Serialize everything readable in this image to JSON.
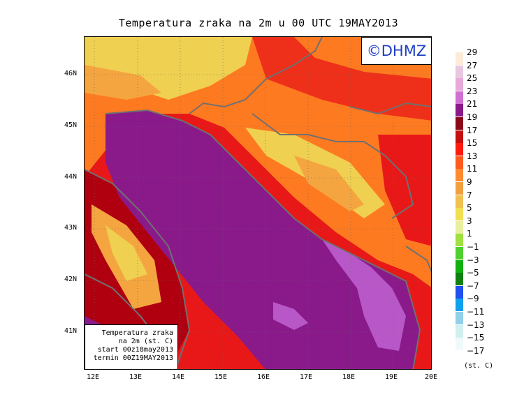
{
  "title": "Temperatura zraka na 2m u 00 UTC 19MAY2013",
  "logo": "©DHMZ",
  "infobox": {
    "line1": "Temperatura zraka",
    "line2": "na 2m (st. C)",
    "line3": "start 00z18may2013",
    "line4": "termin 00Z19MAY2013"
  },
  "y_ticks": [
    "46N",
    "45N",
    "44N",
    "43N",
    "42N",
    "41N"
  ],
  "x_ticks": [
    "12E",
    "13E",
    "14E",
    "15E",
    "16E",
    "17E",
    "18E",
    "19E",
    "20E"
  ],
  "legend": {
    "labels": [
      "29",
      "27",
      "25",
      "23",
      "21",
      "19",
      "17",
      "15",
      "13",
      "11",
      "9",
      "7",
      "5",
      "3",
      "1",
      "−1",
      "−3",
      "−5",
      "−7",
      "−9",
      "−11",
      "−13",
      "−15",
      "−17"
    ],
    "colors": [
      "#fdebd8",
      "#e8c8e0",
      "#e8a8d8",
      "#d070d0",
      "#8a1a8a",
      "#8a0a1a",
      "#c41010",
      "#ff1a10",
      "#ff5a20",
      "#ff8a30",
      "#f0a040",
      "#f0c050",
      "#f0e050",
      "#e8f0a0",
      "#a0e040",
      "#50d030",
      "#10b010",
      "#108010",
      "#2050f0",
      "#10a0f0",
      "#90d0e8",
      "#d0f0f0",
      "#f0fafa"
    ],
    "unit": "(st. C)"
  },
  "map_colors": {
    "sea_deep": "#8a1a8a",
    "sea_shallow": "#b858c8",
    "coast_red": "#e81818",
    "dark_red": "#b00010",
    "orange": "#fe7a20",
    "light_orange": "#f5a540",
    "yellow": "#efd050",
    "border": "#707070"
  }
}
